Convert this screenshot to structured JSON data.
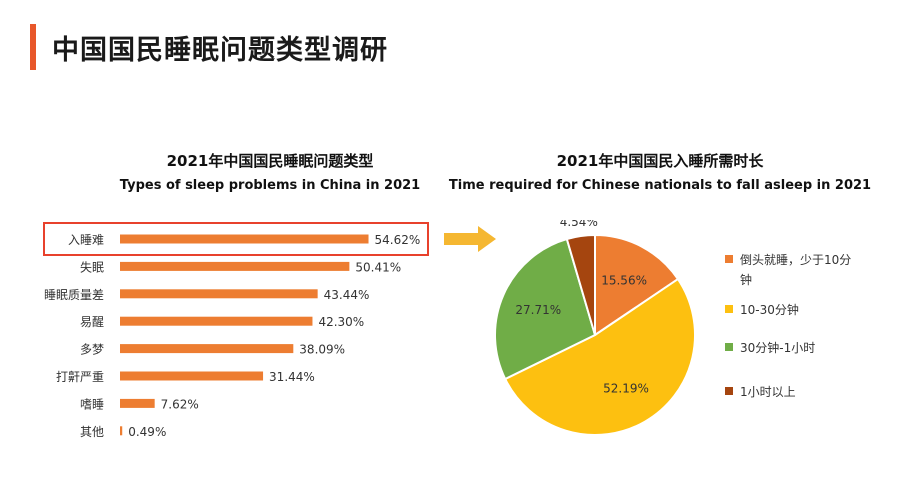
{
  "page": {
    "title": "中国国民睡眠问题类型调研"
  },
  "colors": {
    "accent": "#e8572a",
    "bar": "#ed7d31",
    "highlight_box": "#e8412c",
    "arrow": "#f5b731"
  },
  "bar_chart": {
    "title_cn": "2021年中国国民睡眠问题类型",
    "title_en": "Types of sleep problems in China in 2021"
  },
  "pie_chart": {
    "title_cn": "2021年中国国民入睡所需时长",
    "title_en": "Time required for Chinese nationals to fall asleep in 2021"
  },
  "chart_data": [
    {
      "type": "bar",
      "orientation": "horizontal",
      "title": "2021年中国国民睡眠问题类型",
      "subtitle": "Types of sleep problems in China in 2021",
      "categories": [
        "入睡难",
        "失眠",
        "睡眠质量差",
        "易醒",
        "多梦",
        "打鼾严重",
        "嗜睡",
        "其他"
      ],
      "values": [
        54.62,
        50.41,
        43.44,
        42.3,
        38.09,
        31.44,
        7.62,
        0.49
      ],
      "value_labels": [
        "54.62%",
        "50.41%",
        "43.44%",
        "42.30%",
        "38.09%",
        "31.44%",
        "7.62%",
        "0.49%"
      ],
      "highlighted": "入睡难",
      "color": "#ed7d31",
      "grid": false
    },
    {
      "type": "pie",
      "title": "2021年中国国民入睡所需时长",
      "subtitle": "Time required for Chinese nationals to fall asleep in 2021",
      "slices": [
        {
          "label": "倒头就睡，少于10分钟",
          "value": 15.56,
          "text": "15.56%",
          "color": "#ed7d31"
        },
        {
          "label": "10-30分钟",
          "value": 52.19,
          "text": "52.19%",
          "color": "#fdc010"
        },
        {
          "label": "30分钟-1小时",
          "value": 27.71,
          "text": "27.71%",
          "color": "#70ad47"
        },
        {
          "label": "1小时以上",
          "value": 4.54,
          "text": "4.54%",
          "color": "#a5450f"
        }
      ],
      "legend_position": "right"
    }
  ]
}
